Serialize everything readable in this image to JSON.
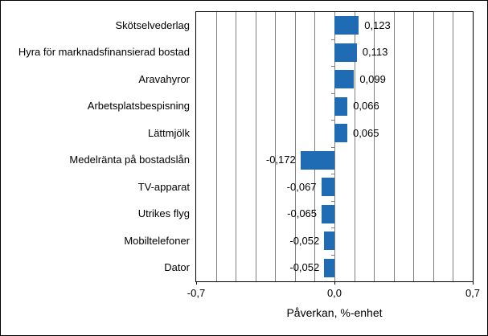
{
  "chart_data": {
    "type": "bar",
    "orientation": "horizontal",
    "categories": [
      "Skötselvederlag",
      "Hyra för marknadsfinansierad bostad",
      "Aravahyror",
      "Arbetsplatsbespisning",
      "Lättmjölk",
      "Medelränta på bostadslån",
      "TV-apparat",
      "Utrikes flyg",
      "Mobiltelefoner",
      "Dator"
    ],
    "values": [
      0.123,
      0.113,
      0.099,
      0.066,
      0.065,
      -0.172,
      -0.067,
      -0.065,
      -0.052,
      -0.052
    ],
    "value_labels": [
      "0,123",
      "0,113",
      "0,099",
      "0,066",
      "0,065",
      "-0,172",
      "-0,067",
      "-0,065",
      "-0,052",
      "-0,052"
    ],
    "title": "",
    "xlabel": "Påverkan, %-enhet",
    "ylabel": "",
    "xlim": [
      -0.7,
      0.7
    ],
    "gridline_step": 0.1,
    "grid": true,
    "legend": false,
    "x_ticks": [
      {
        "value": -0.7,
        "label": "-0,7"
      },
      {
        "value": 0.0,
        "label": "0,0"
      },
      {
        "value": 0.7,
        "label": "0,7"
      }
    ],
    "colors": {
      "bar": "#1f6cb4",
      "gridline": "#808080",
      "plot_border": "#000000",
      "background": "#ffffff",
      "text": "#000000"
    }
  }
}
